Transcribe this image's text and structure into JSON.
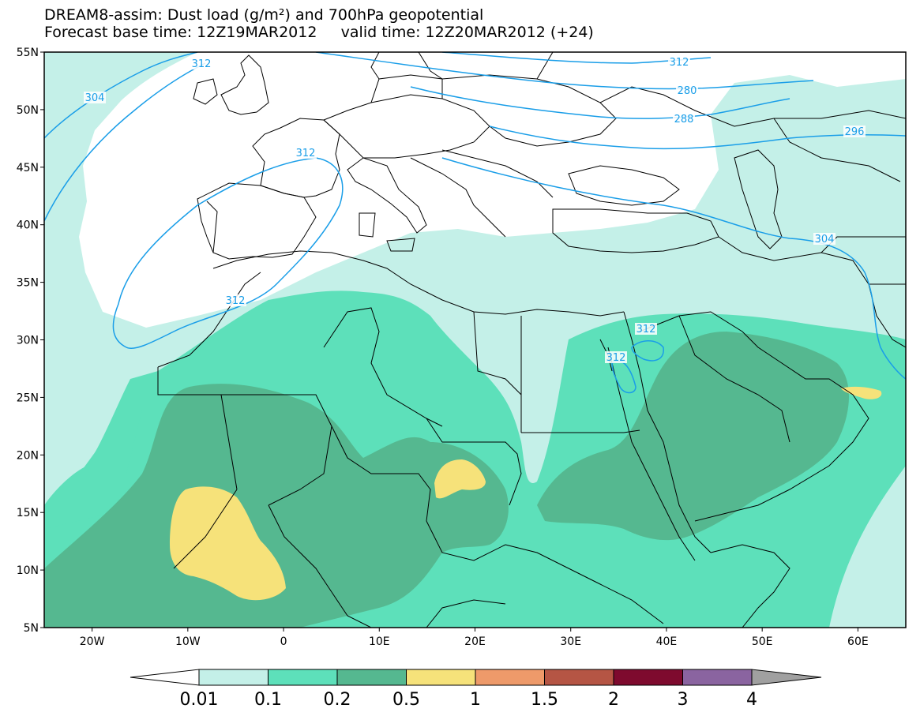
{
  "header": {
    "line1": "DREAM8-assim: Dust load (g/m²) and 700hPa geopotential",
    "line2": "Forecast base time: 12Z19MAR2012     valid time: 12Z20MAR2012 (+24)"
  },
  "map": {
    "lon_range": [
      -25,
      65
    ],
    "lat_range": [
      5,
      55
    ],
    "lat_labels": [
      "55N",
      "50N",
      "45N",
      "40N",
      "35N",
      "30N",
      "25N",
      "20N",
      "15N",
      "10N",
      "5N"
    ],
    "lon_labels": [
      "20W",
      "10W",
      "0",
      "10E",
      "20E",
      "30E",
      "40E",
      "50E",
      "60E"
    ]
  },
  "contours": {
    "color": "#1a9ee8",
    "labels": [
      "304",
      "312",
      "312",
      "312",
      "280",
      "288",
      "296",
      "304",
      "312",
      "312",
      "312"
    ]
  },
  "colorbar": {
    "levels": [
      "0.01",
      "0.1",
      "0.2",
      "0.5",
      "1",
      "1.5",
      "2",
      "3",
      "4"
    ],
    "colors": [
      "#c4f0e8",
      "#5de0ba",
      "#55b890",
      "#f6e27a",
      "#ee9a6a",
      "#b55544",
      "#7e0a2e",
      "#8a64a0",
      "#a0a0a0"
    ]
  },
  "fill_colors": {
    "light": "#c4f0e8",
    "medium": "#5de0ba",
    "dark": "#55b890",
    "yellow": "#f6e27a"
  }
}
